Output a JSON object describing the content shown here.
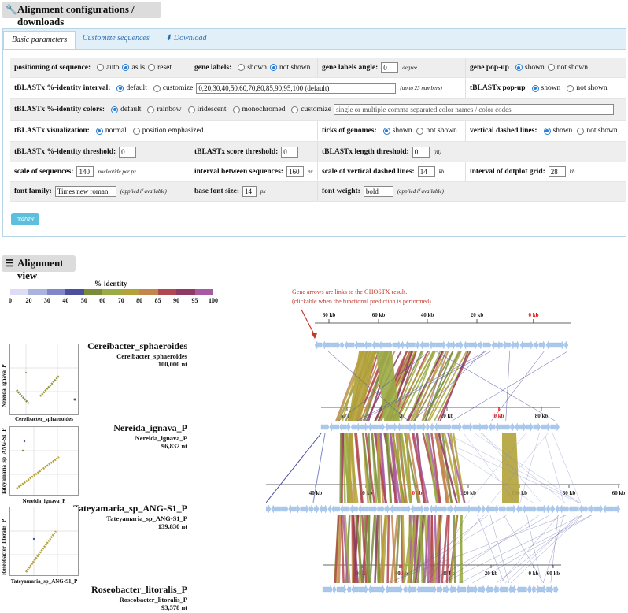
{
  "sections": {
    "config_title": "Alignment configurations / downloads",
    "view_title": "Alignment view"
  },
  "tabs": [
    "Basic parameters",
    "Customize sequences",
    "Download"
  ],
  "params": {
    "positioning": {
      "label": "positioning of sequence:",
      "options": [
        "auto",
        "as is",
        "reset"
      ],
      "selected": "as is"
    },
    "gene_labels": {
      "label": "gene labels:",
      "options": [
        "shown",
        "not shown"
      ],
      "selected": "not shown"
    },
    "gene_labels_angle": {
      "label": "gene labels angle:",
      "value": "0",
      "unit": "degree"
    },
    "gene_popup": {
      "label": "gene pop-up",
      "options": [
        "shown",
        "not shown"
      ],
      "selected": "shown"
    },
    "identity_interval": {
      "label": "tBLASTx %-identity interval:",
      "options": [
        "default",
        "customize"
      ],
      "selected": "default",
      "value": "0,20,30,40,50,60,70,80,85,90,95,100 (default)",
      "note": "(up to 23 numbers)"
    },
    "tblastx_popup": {
      "label": "tBLASTx pop-up",
      "options": [
        "shown",
        "not shown"
      ],
      "selected": "shown"
    },
    "identity_colors": {
      "label": "tBLASTx %-identity colors:",
      "options": [
        "default",
        "rainbow",
        "iridescent",
        "monochromed",
        "customize"
      ],
      "selected": "default",
      "placeholder": "single or multiple comma separated color names / color codes"
    },
    "visualization": {
      "label": "tBLASTx visualization:",
      "options": [
        "normal",
        "position emphasized"
      ],
      "selected": "normal"
    },
    "ticks": {
      "label": "ticks of genomes:",
      "options": [
        "shown",
        "not shown"
      ],
      "selected": "shown"
    },
    "vdashed": {
      "label": "vertical dashed lines:",
      "options": [
        "shown",
        "not shown"
      ],
      "selected": "shown"
    },
    "identity_threshold": {
      "label": "tBLASTx %-identity threshold:",
      "value": "0"
    },
    "score_threshold": {
      "label": "tBLASTx score threshold:",
      "value": "0"
    },
    "length_threshold": {
      "label": "tBLASTx length threshold:",
      "value": "0",
      "unit": "(nt)"
    },
    "scale_seq": {
      "label": "scale of sequences:",
      "value": "140",
      "unit": "nucleotide per px"
    },
    "interval_seq": {
      "label": "interval between sequences:",
      "value": "160",
      "unit": "px"
    },
    "scale_vdashed": {
      "label": "scale of vertical dashed lines:",
      "value": "14",
      "unit": "kb"
    },
    "dotplot_grid": {
      "label": "interval of dotplot grid:",
      "value": "28",
      "unit": "kb"
    },
    "font_family": {
      "label": "font family:",
      "value": "Times new roman",
      "note": "(applied if available)"
    },
    "font_size": {
      "label": "base font size:",
      "value": "14",
      "unit": "px"
    },
    "font_weight": {
      "label": "font weight:",
      "value": "bold",
      "note": "(applied if available)"
    }
  },
  "redraw_label": "redraw",
  "legend": {
    "title": "%-identity",
    "ticks": [
      "0",
      "20",
      "30",
      "40",
      "50",
      "60",
      "70",
      "80",
      "85",
      "90",
      "95",
      "100"
    ],
    "colors": [
      "#dcdcf4",
      "#aab2e0",
      "#7f87c8",
      "#4b4f9e",
      "#7a8c3c",
      "#9aab45",
      "#b3a23a",
      "#c2864d",
      "#b2484f",
      "#8e3a63",
      "#a85aa0"
    ]
  },
  "annotation": {
    "line1": "Gene arrows are links to the GHOSTX result.",
    "line2": "(clickable when the functional prediction is performed)"
  },
  "genomes": [
    {
      "name": "Cereibacter_sphaeroides",
      "sub": "Cereibacter_sphaeroides",
      "length": "100,000 nt"
    },
    {
      "name": "Nereida_ignava_P",
      "sub": "Nereida_ignava_P",
      "length": "96,832 nt"
    },
    {
      "name": "Tateyamaria_sp_ANG-S1_P",
      "sub": "Tateyamaria_sp_ANG-S1_P",
      "length": "139,830 nt"
    },
    {
      "name": "Roseobacter_litoralis_P",
      "sub": "Roseobacter_litoralis_P",
      "length": "93,578 nt"
    }
  ],
  "dotplots": [
    {
      "xlabel": "Cereibacter_sphaeroides",
      "ylabel": "Nereida_ignava_P"
    },
    {
      "xlabel": "Nereida_ignava_P",
      "ylabel": "Tateyamaria_sp_ANG-S1_P"
    },
    {
      "xlabel": "Tateyamaria_sp_ANG-S1_P",
      "ylabel": "Roseobacter_litoralis_P"
    }
  ],
  "axes": [
    {
      "labels": [
        "80 kb",
        "60 kb",
        "40 kb",
        "20 kb",
        "0 kb"
      ],
      "zero": "0 kb"
    },
    {
      "labels": [
        "60 kb",
        "40 kb",
        "20 kb",
        "0 kb",
        "80 kb"
      ],
      "zero": "0 kb"
    },
    {
      "labels": [
        "40 kb",
        "20 kb",
        "0 kb",
        "120 kb",
        "100 kb",
        "80 kb",
        "60 kb"
      ],
      "zero": "0 kb"
    },
    {
      "labels": [
        "80 kb",
        "60 kb",
        "0 kb",
        "40 kb",
        "20 kb",
        "0 kb",
        "60 kb"
      ],
      "zero": "0 kb"
    }
  ]
}
